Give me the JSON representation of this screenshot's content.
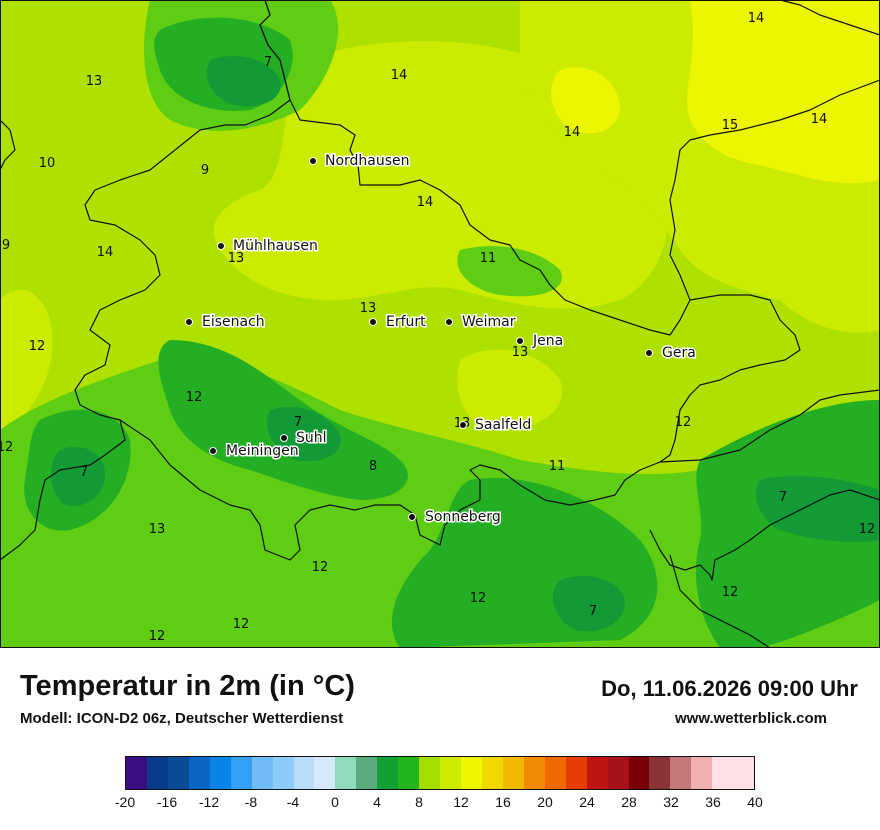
{
  "header": {
    "title": "Temperatur in 2m (in °C)",
    "model": "Modell: ICON-D2 06z, Deutscher Wetterdienst",
    "datetime": "Do, 11.06.2026 09:00 Uhr",
    "website": "www.wetterblick.com"
  },
  "cities": [
    {
      "name": "Nordhausen"
    },
    {
      "name": "Mühlhausen"
    },
    {
      "name": "Eisenach"
    },
    {
      "name": "Erfurt"
    },
    {
      "name": "Weimar"
    },
    {
      "name": "Jena"
    },
    {
      "name": "Gera"
    },
    {
      "name": "Saalfeld"
    },
    {
      "name": "Suhl"
    },
    {
      "name": "Meiningen"
    },
    {
      "name": "Sonneberg"
    }
  ],
  "temperature_labels": [
    "14",
    "14",
    "13",
    "7",
    "14",
    "14",
    "15",
    "14",
    "10",
    "9",
    "14",
    "9",
    "13",
    "13",
    "11",
    "13",
    "12",
    "13",
    "12",
    "12",
    "7",
    "13",
    "12",
    "8",
    "11",
    "7",
    "13",
    "12",
    "12",
    "12",
    "12",
    "12",
    "7",
    "12",
    "7",
    "7"
  ],
  "legend": {
    "min": -20,
    "max": 40,
    "step": 2,
    "tick_labels": [
      "-20",
      "-16",
      "-12",
      "-8",
      "-4",
      "0",
      "4",
      "8",
      "12",
      "16",
      "20",
      "24",
      "28",
      "32",
      "36",
      "40"
    ],
    "colors": [
      "#3a0d80",
      "#0a3a8a",
      "#0b4c96",
      "#0a66c2",
      "#0a84e6",
      "#33a0f5",
      "#6fbcf7",
      "#8fcbf9",
      "#b8dcf9",
      "#d6e9fb",
      "#8fdbbc",
      "#5aab7e",
      "#12a035",
      "#22b51d",
      "#a6dd00",
      "#cfeb00",
      "#eef500",
      "#f0d800",
      "#f2b800",
      "#f08a00",
      "#ee6a00",
      "#e83c05",
      "#be1414",
      "#a8101a",
      "#7a0008",
      "#8b3438",
      "#c47878",
      "#f0b0b0",
      "#fde0e6"
    ]
  },
  "map_colors": {
    "base": "#aee100",
    "warm": "#cbeb00",
    "warmer": "#ecf600",
    "cool": "#5ecd14",
    "cold": "#23ae23",
    "coldest": "#119a35",
    "border": "#111111"
  }
}
